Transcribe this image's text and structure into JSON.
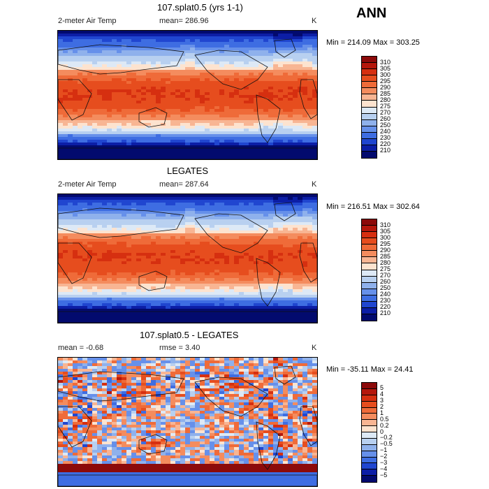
{
  "season": "ANN",
  "panels": [
    {
      "title": "107.splat0.5 (yrs 1-1)",
      "left_label": "2-meter Air Temp",
      "mid_label": "mean= 286.96",
      "units": "K",
      "minmax": "Min = 214.09 Max = 303.25",
      "colorbar": {
        "labels": [
          "310",
          "305",
          "300",
          "295",
          "290",
          "285",
          "280",
          "275",
          "270",
          "260",
          "250",
          "240",
          "230",
          "220",
          "210"
        ],
        "colors": [
          "#8c0a0a",
          "#b5170c",
          "#d62f10",
          "#e64d1e",
          "#ef6b39",
          "#f48c5e",
          "#f8b593",
          "#fde3cf",
          "#dde9f6",
          "#b8d0f0",
          "#8fb1ec",
          "#6690ea",
          "#3e6de2",
          "#2046d0",
          "#0c1ea6",
          "#020a6e"
        ]
      },
      "field": "temp"
    },
    {
      "title": "LEGATES",
      "left_label": "2-meter Air Temp",
      "mid_label": "mean= 287.64",
      "units": "K",
      "minmax": "Min = 216.51 Max = 302.64",
      "colorbar": {
        "labels": [
          "310",
          "305",
          "300",
          "295",
          "290",
          "285",
          "280",
          "275",
          "270",
          "260",
          "250",
          "240",
          "230",
          "220",
          "210"
        ],
        "colors": [
          "#8c0a0a",
          "#b5170c",
          "#d62f10",
          "#e64d1e",
          "#ef6b39",
          "#f48c5e",
          "#f8b593",
          "#fde3cf",
          "#dde9f6",
          "#b8d0f0",
          "#8fb1ec",
          "#6690ea",
          "#3e6de2",
          "#2046d0",
          "#0c1ea6",
          "#020a6e"
        ]
      },
      "field": "temp2"
    },
    {
      "title": "107.splat0.5 - LEGATES",
      "left_label": "mean =   -0.68",
      "mid_label": "rmse =    3.40",
      "units": "K",
      "minmax": "Min = -35.11 Max =   24.41",
      "colorbar": {
        "labels": [
          "5",
          "4",
          "3",
          "2",
          "1",
          "0.5",
          "0.2",
          "0",
          "−0.2",
          "−0.5",
          "−1",
          "−2",
          "−3",
          "−4",
          "−5"
        ],
        "colors": [
          "#8c0a0a",
          "#b5170c",
          "#d62f10",
          "#e64d1e",
          "#ef6b39",
          "#f48c5e",
          "#f8b593",
          "#fde3cf",
          "#dde9f6",
          "#b8d0f0",
          "#8fb1ec",
          "#6690ea",
          "#3e6de2",
          "#2046d0",
          "#0c1ea6",
          "#020a6e"
        ]
      },
      "field": "diff"
    }
  ]
}
